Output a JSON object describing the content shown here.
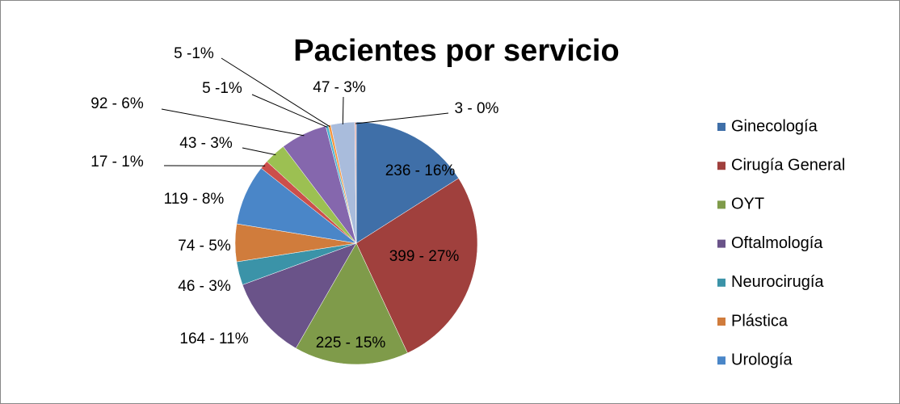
{
  "chart_data": {
    "type": "pie",
    "title": "Pacientes por servicio",
    "categories": [
      "Ginecología",
      "Cirugía General",
      "OYT",
      "Oftalmología",
      "Neurocirugía",
      "Plástica",
      "Urología",
      null,
      null,
      null,
      null,
      null,
      null,
      null
    ],
    "values": [
      236,
      399,
      225,
      164,
      46,
      74,
      119,
      17,
      43,
      92,
      5,
      5,
      47,
      3
    ],
    "value_labels": [
      "236 - 16%",
      "399 - 27%",
      "225 - 15%",
      "164 - 11%",
      "46 - 3%",
      "74 - 5%",
      "119 - 8%",
      "17 - 1%",
      "43 - 3%",
      "92 - 6%",
      "5 -1%",
      "5 -1%",
      "47 - 3%",
      "3 - 0%"
    ],
    "colors": [
      "#3f6fa8",
      "#a0403d",
      "#7f9b4a",
      "#6a5389",
      "#3b93a8",
      "#d07c3c",
      "#4a86c8",
      "#cc4f4b",
      "#9cc052",
      "#8567ad",
      "#4bb3cf",
      "#f7963f",
      "#a9bcdc",
      "#dba6a5"
    ],
    "legend": "right"
  }
}
